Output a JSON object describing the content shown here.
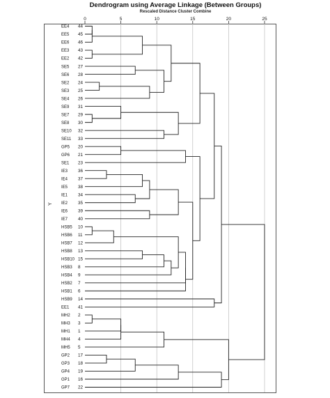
{
  "chart_data": {
    "type": "dendrogram",
    "title": "Dendrogram using Average Linkage (Between Groups)",
    "subtitle": "Rescaled Distance Cluster Combine",
    "ylabel": "Y",
    "xlim": [
      0,
      25
    ],
    "x_ticks": [
      0,
      5,
      10,
      15,
      20,
      25
    ],
    "grid": true,
    "leaves": [
      {
        "label": "EE4",
        "case": 44
      },
      {
        "label": "EE5",
        "case": 45
      },
      {
        "label": "EE6",
        "case": 46
      },
      {
        "label": "EE3",
        "case": 43
      },
      {
        "label": "EE2",
        "case": 42
      },
      {
        "label": "SE5",
        "case": 27
      },
      {
        "label": "SE6",
        "case": 28
      },
      {
        "label": "SE2",
        "case": 24
      },
      {
        "label": "SE3",
        "case": 25
      },
      {
        "label": "SE4",
        "case": 26
      },
      {
        "label": "SE9",
        "case": 31
      },
      {
        "label": "SE7",
        "case": 29
      },
      {
        "label": "SE8",
        "case": 30
      },
      {
        "label": "SE10",
        "case": 32
      },
      {
        "label": "SE11",
        "case": 33
      },
      {
        "label": "GP5",
        "case": 20
      },
      {
        "label": "GP6",
        "case": 21
      },
      {
        "label": "SE1",
        "case": 23
      },
      {
        "label": "IE3",
        "case": 36
      },
      {
        "label": "IE4",
        "case": 37
      },
      {
        "label": "IE5",
        "case": 38
      },
      {
        "label": "IE1",
        "case": 34
      },
      {
        "label": "IE2",
        "case": 35
      },
      {
        "label": "IE6",
        "case": 39
      },
      {
        "label": "IE7",
        "case": 40
      },
      {
        "label": "HSB5",
        "case": 10
      },
      {
        "label": "HSB6",
        "case": 11
      },
      {
        "label": "HSB7",
        "case": 12
      },
      {
        "label": "HSB8",
        "case": 13
      },
      {
        "label": "HSB10",
        "case": 15
      },
      {
        "label": "HSB3",
        "case": 8
      },
      {
        "label": "HSB4",
        "case": 9
      },
      {
        "label": "HSB2",
        "case": 7
      },
      {
        "label": "HSB1",
        "case": 6
      },
      {
        "label": "HSB9",
        "case": 14
      },
      {
        "label": "EE1",
        "case": 41
      },
      {
        "label": "MH2",
        "case": 2
      },
      {
        "label": "MH3",
        "case": 3
      },
      {
        "label": "MH1",
        "case": 1
      },
      {
        "label": "MH4",
        "case": 4
      },
      {
        "label": "MH5",
        "case": 5
      },
      {
        "label": "GP2",
        "case": 17
      },
      {
        "label": "GP3",
        "case": 18
      },
      {
        "label": "GP4",
        "case": 19
      },
      {
        "label": "GP1",
        "case": 16
      },
      {
        "label": "GP7",
        "case": 22
      }
    ],
    "merges": [
      {
        "a": 0,
        "b": 1,
        "d": 1
      },
      {
        "a": "m0",
        "b": 2,
        "d": 1
      },
      {
        "a": 3,
        "b": 4,
        "d": 1
      },
      {
        "a": "m1",
        "b": "m2",
        "d": 8
      },
      {
        "a": 5,
        "b": 6,
        "d": 7
      },
      {
        "a": 7,
        "b": 8,
        "d": 2
      },
      {
        "a": "m5",
        "b": 9,
        "d": 9
      },
      {
        "a": "m4",
        "b": "m6",
        "d": 11
      },
      {
        "a": "m3",
        "b": "m7",
        "d": 12
      },
      {
        "a": 11,
        "b": 12,
        "d": 1
      },
      {
        "a": 10,
        "b": "m9",
        "d": 5
      },
      {
        "a": 13,
        "b": 14,
        "d": 11
      },
      {
        "a": "m10",
        "b": "m11",
        "d": 13
      },
      {
        "a": "m8",
        "b": "m12",
        "d": 16
      },
      {
        "a": 15,
        "b": 16,
        "d": 5
      },
      {
        "a": "m14",
        "b": 17,
        "d": 14
      },
      {
        "a": 18,
        "b": 19,
        "d": 3
      },
      {
        "a": 21,
        "b": 22,
        "d": 7
      },
      {
        "a": "m16",
        "b": 20,
        "d": 8
      },
      {
        "a": "m18",
        "b": "m17",
        "d": 9
      },
      {
        "a": 23,
        "b": 24,
        "d": 9
      },
      {
        "a": "m19",
        "b": "m20",
        "d": 13
      },
      {
        "a": 25,
        "b": 26,
        "d": 1
      },
      {
        "a": "m22",
        "b": 27,
        "d": 4
      },
      {
        "a": 28,
        "b": 29,
        "d": 8
      },
      {
        "a": "m24",
        "b": 30,
        "d": 11
      },
      {
        "a": "m25",
        "b": 31,
        "d": 12
      },
      {
        "a": "m23",
        "b": "m26",
        "d": 13
      },
      {
        "a": "m27",
        "b": 32,
        "d": 14
      },
      {
        "a": "m28",
        "b": 33,
        "d": 14
      },
      {
        "a": "m21",
        "b": "m29",
        "d": 15
      },
      {
        "a": "m15",
        "b": "m30",
        "d": 16
      },
      {
        "a": "m13",
        "b": "m31",
        "d": 18
      },
      {
        "a": 34,
        "b": 35,
        "d": 18
      },
      {
        "a": "m32",
        "b": "m33",
        "d": 19
      },
      {
        "a": 36,
        "b": 37,
        "d": 1
      },
      {
        "a": "m35",
        "b": 38,
        "d": 5
      },
      {
        "a": "m36",
        "b": 39,
        "d": 5
      },
      {
        "a": "m37",
        "b": 40,
        "d": 11
      },
      {
        "a": 41,
        "b": 42,
        "d": 3
      },
      {
        "a": "m39",
        "b": 43,
        "d": 7
      },
      {
        "a": "m40",
        "b": 44,
        "d": 13
      },
      {
        "a": "m41",
        "b": 45,
        "d": 19
      },
      {
        "a": "m38",
        "b": "m42",
        "d": 20
      },
      {
        "a": "m34",
        "b": "m43",
        "d": 25
      }
    ]
  }
}
